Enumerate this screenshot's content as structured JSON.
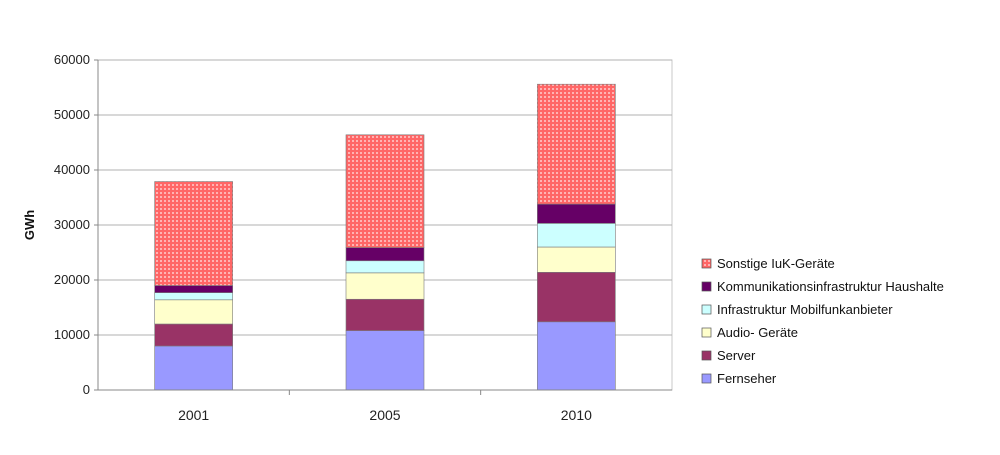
{
  "chart_data": {
    "type": "bar",
    "stacked": true,
    "categories": [
      "2001",
      "2005",
      "2010"
    ],
    "ylabel": "GWh",
    "xlabel": "",
    "ylim": [
      0,
      60000
    ],
    "yticks": [
      0,
      10000,
      20000,
      30000,
      40000,
      50000,
      60000
    ],
    "grid": true,
    "legend_position": "right",
    "series": [
      {
        "name": "Fernseher",
        "color": "#9999ff",
        "values": [
          8000,
          10800,
          12400
        ]
      },
      {
        "name": "Server",
        "color": "#993366",
        "values": [
          4000,
          5700,
          9000
        ]
      },
      {
        "name": "Audio- Geräte",
        "color": "#ffffcc",
        "values": [
          4400,
          4800,
          4600
        ]
      },
      {
        "name": "Infrastruktur Mobilfunkanbieter",
        "color": "#ccffff",
        "values": [
          1300,
          2200,
          4300
        ]
      },
      {
        "name": "Kommunikationsinfrastruktur Haushalte",
        "color": "#660066",
        "values": [
          1300,
          2400,
          3500
        ]
      },
      {
        "name": "Sonstige IuK-Geräte",
        "color": "#ff6666",
        "values": [
          18900,
          20500,
          21800
        ]
      }
    ]
  }
}
